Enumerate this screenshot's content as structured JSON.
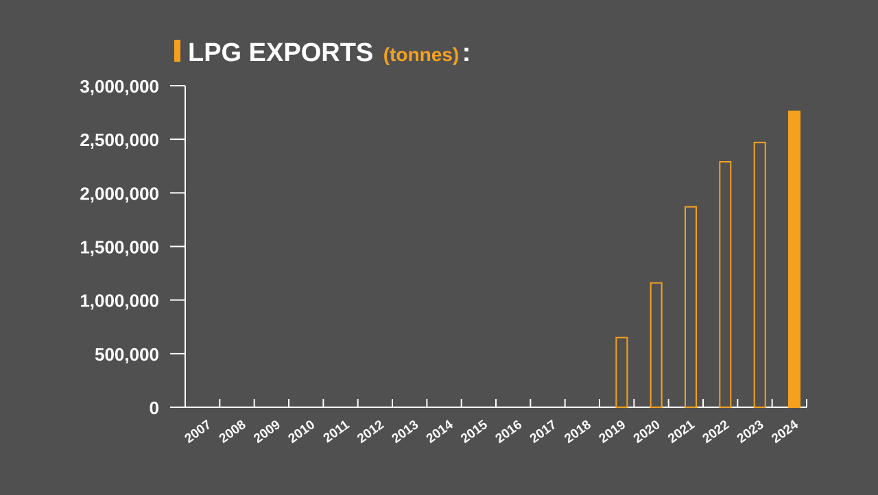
{
  "title": {
    "main": "LPG EXPORTS",
    "unit": "(tonnes)",
    "colon": ":"
  },
  "colors": {
    "background": "#505050",
    "accent": "#f5a11e",
    "text": "#ffffff"
  },
  "chart_data": {
    "type": "bar",
    "title": "LPG EXPORTS (tonnes):",
    "xlabel": "",
    "ylabel": "",
    "ylim": [
      0,
      3000000
    ],
    "yticks": [
      0,
      500000,
      1000000,
      1500000,
      2000000,
      2500000,
      3000000
    ],
    "ytick_labels": [
      "0",
      "500,000",
      "1,000,000",
      "1,500,000",
      "2,000,000",
      "2,500,000",
      "3,000,000"
    ],
    "categories": [
      "2007",
      "2008",
      "2009",
      "2010",
      "2011",
      "2012",
      "2013",
      "2014",
      "2015",
      "2016",
      "2017",
      "2018",
      "2019",
      "2020",
      "2021",
      "2022",
      "2023",
      "2024"
    ],
    "values": [
      0,
      0,
      0,
      0,
      0,
      0,
      0,
      0,
      0,
      0,
      0,
      0,
      650000,
      1160000,
      1870000,
      2290000,
      2470000,
      2760000
    ],
    "highlighted_category": "2024",
    "grid": false,
    "legend": "none"
  }
}
